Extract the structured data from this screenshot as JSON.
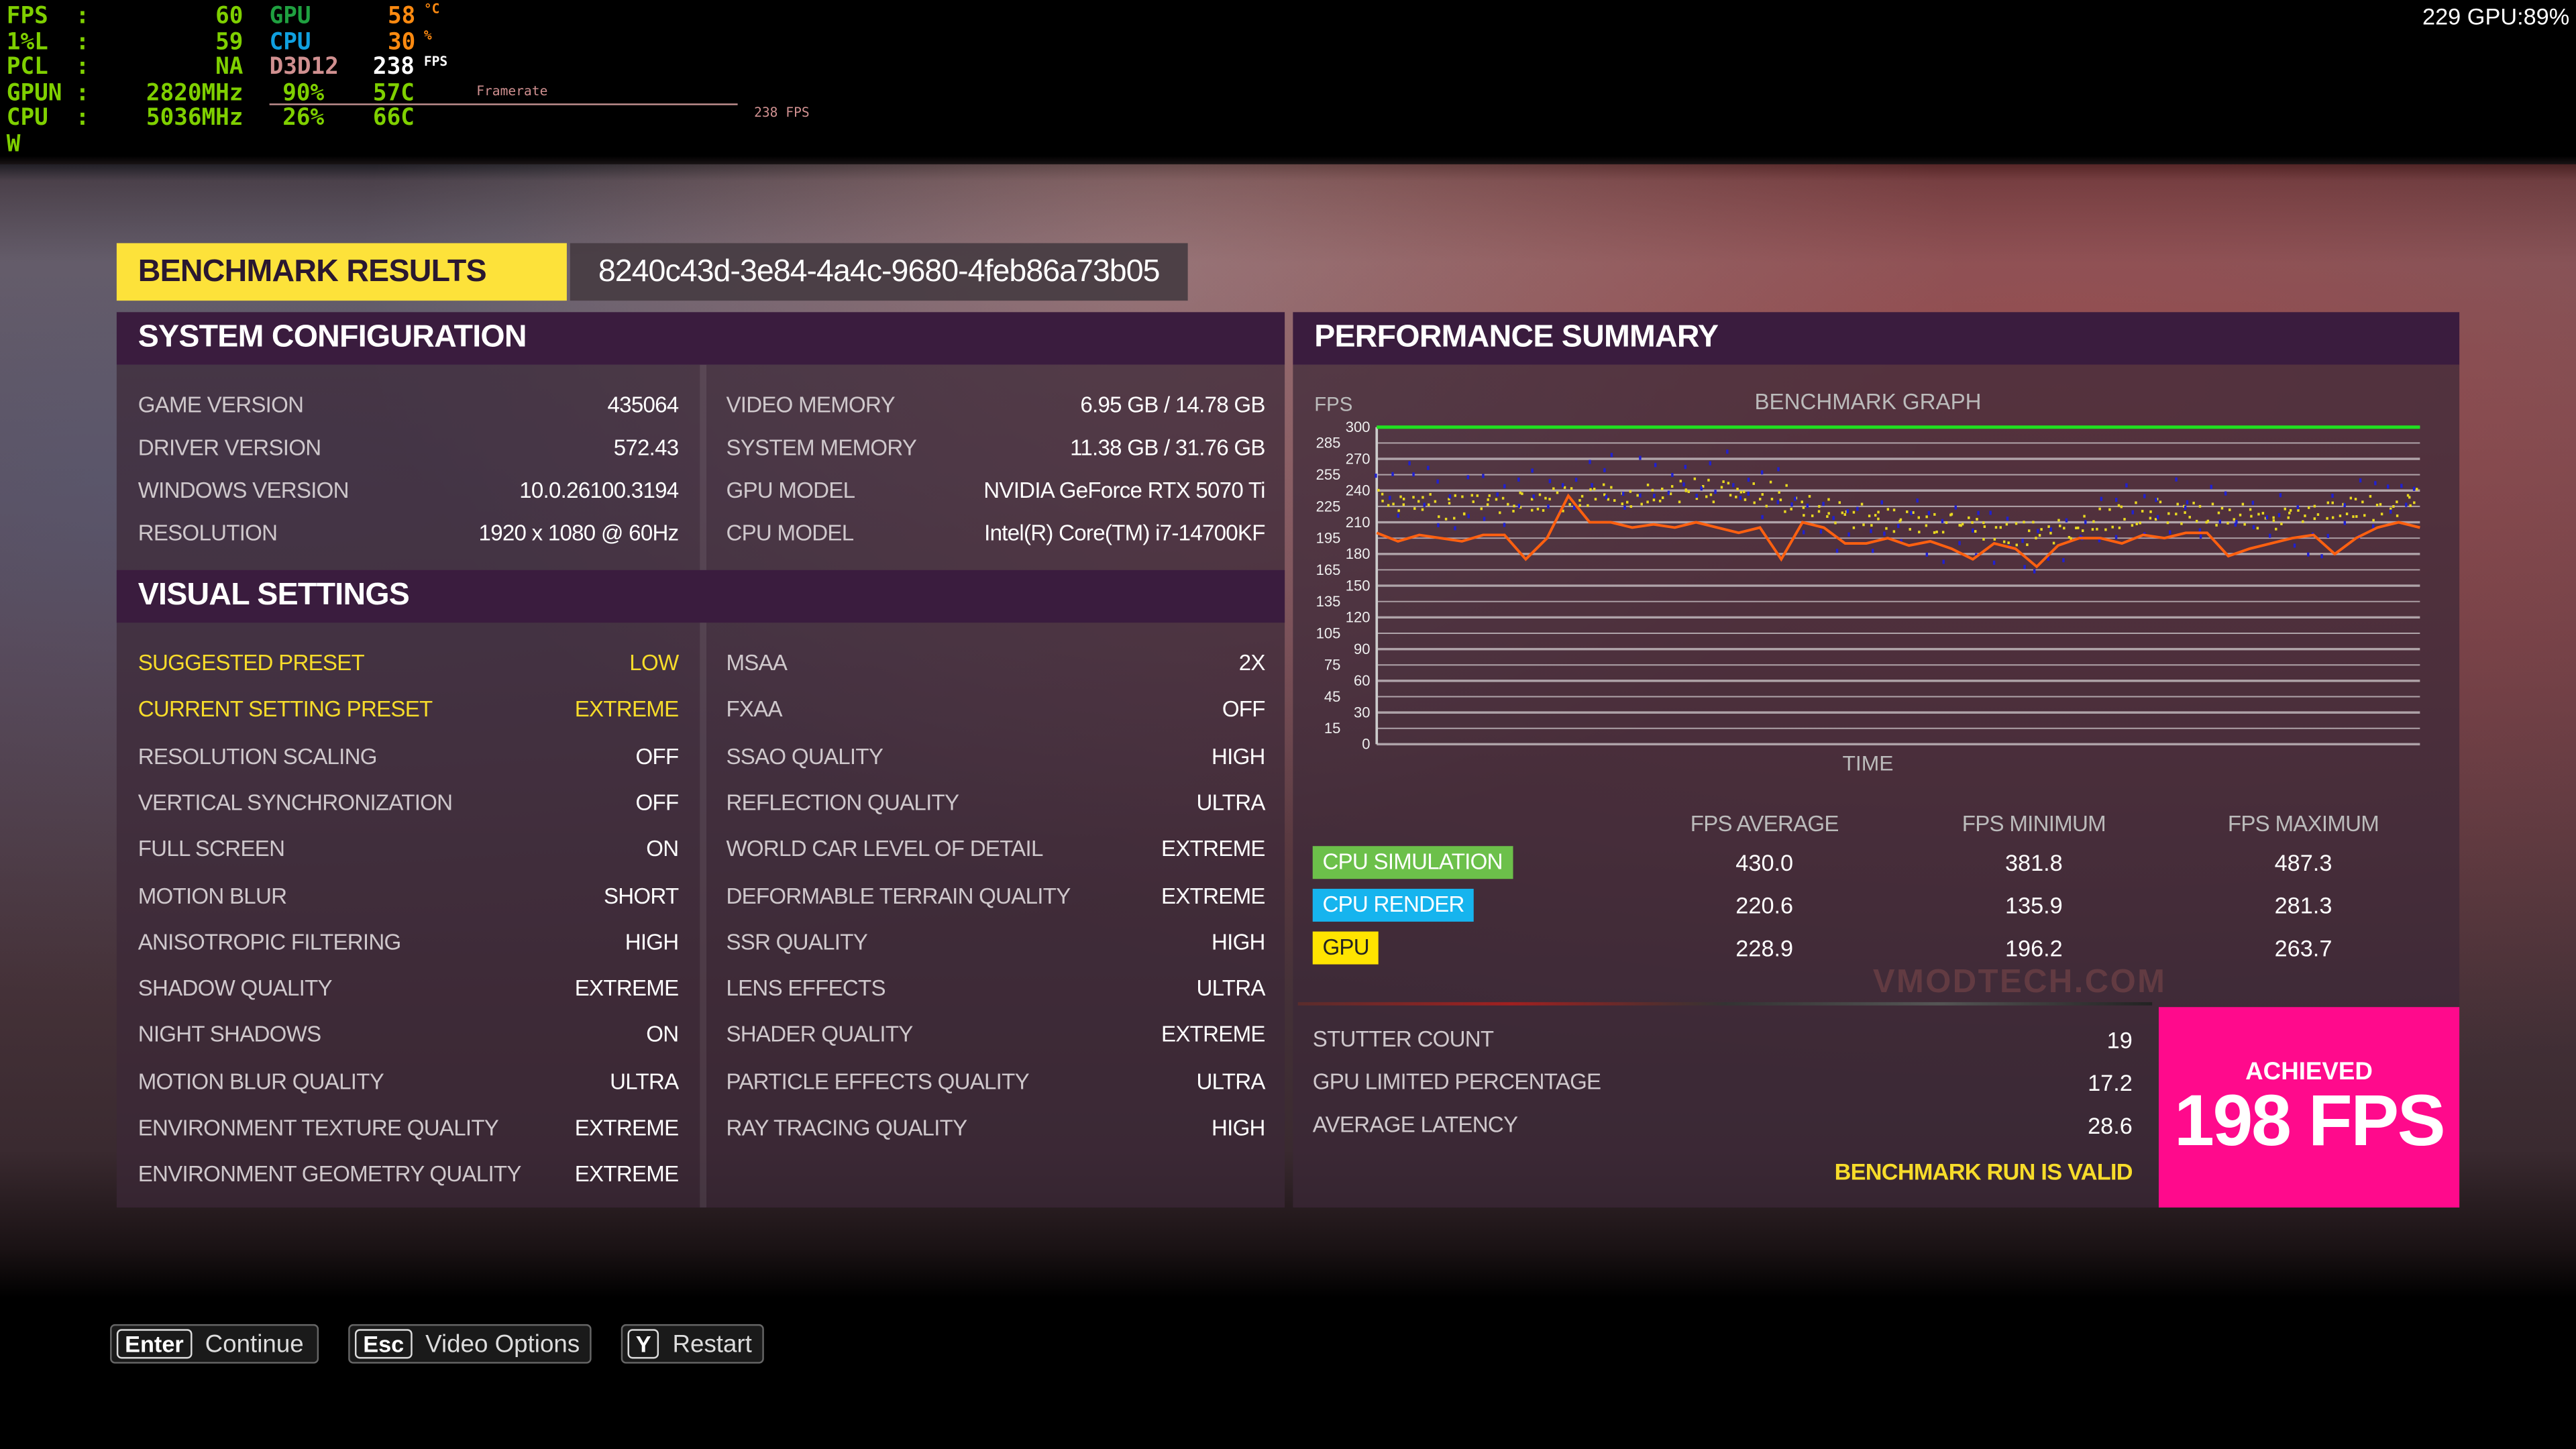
{
  "overlay": {
    "left": [
      {
        "label": "FPS",
        "sep": ":",
        "value": "60"
      },
      {
        "label": "1%L",
        "sep": ":",
        "value": "59"
      },
      {
        "label": "PCL",
        "sep": ":",
        "value": "NA"
      },
      {
        "label": "GPUN",
        "sep": ":",
        "value": "2820MHz"
      },
      {
        "label": "CPU",
        "sep": ":",
        "value": "5036MHz"
      },
      {
        "label": "W",
        "sep": "",
        "value": ""
      }
    ],
    "gpu_label": "GPU",
    "gpu_temp": "58",
    "temp_unit": "°C",
    "cpu_label": "CPU",
    "cpu_usage": "30",
    "pct_unit": "%",
    "api": "D3D12",
    "api_fps": "238",
    "fps_unit": "FPS",
    "framerate_label": "Framerate",
    "gpu_load": "90%",
    "gpu_temp2": "57C",
    "cpu_load": "26%",
    "cpu_temp": "66C",
    "graph_fps": "238 FPS",
    "top_right": "229 GPU:89%"
  },
  "header": {
    "title": "BENCHMARK RESULTS",
    "run_id": "8240c43d-3e84-4a4c-9680-4feb86a73b05"
  },
  "system_config": {
    "title": "SYSTEM CONFIGURATION",
    "left": [
      {
        "label": "GAME VERSION",
        "value": "435064"
      },
      {
        "label": "DRIVER VERSION",
        "value": "572.43"
      },
      {
        "label": "WINDOWS VERSION",
        "value": "10.0.26100.3194"
      },
      {
        "label": "RESOLUTION",
        "value": "1920 x 1080 @ 60Hz"
      }
    ],
    "right": [
      {
        "label": "VIDEO MEMORY",
        "value": "6.95 GB / 14.78 GB"
      },
      {
        "label": "SYSTEM MEMORY",
        "value": "11.38 GB / 31.76 GB"
      },
      {
        "label": "GPU MODEL",
        "value": "NVIDIA GeForce RTX 5070 Ti"
      },
      {
        "label": "CPU MODEL",
        "value": "Intel(R) Core(TM) i7-14700KF"
      }
    ]
  },
  "visual_settings": {
    "title": "VISUAL SETTINGS",
    "left": [
      {
        "label": "SUGGESTED PRESET",
        "value": "LOW",
        "highlight": true
      },
      {
        "label": "CURRENT SETTING PRESET",
        "value": "EXTREME",
        "highlight": true
      },
      {
        "label": "RESOLUTION SCALING",
        "value": "OFF"
      },
      {
        "label": "VERTICAL SYNCHRONIZATION",
        "value": "OFF"
      },
      {
        "label": "FULL SCREEN",
        "value": "ON"
      },
      {
        "label": "MOTION BLUR",
        "value": "SHORT"
      },
      {
        "label": "ANISOTROPIC FILTERING",
        "value": "HIGH"
      },
      {
        "label": "SHADOW QUALITY",
        "value": "EXTREME"
      },
      {
        "label": "NIGHT SHADOWS",
        "value": "ON"
      },
      {
        "label": "MOTION BLUR QUALITY",
        "value": "ULTRA"
      },
      {
        "label": "ENVIRONMENT TEXTURE QUALITY",
        "value": "EXTREME"
      },
      {
        "label": "ENVIRONMENT GEOMETRY QUALITY",
        "value": "EXTREME"
      }
    ],
    "right": [
      {
        "label": "MSAA",
        "value": "2X"
      },
      {
        "label": "FXAA",
        "value": "OFF"
      },
      {
        "label": "SSAO QUALITY",
        "value": "HIGH"
      },
      {
        "label": "REFLECTION QUALITY",
        "value": "ULTRA"
      },
      {
        "label": "WORLD CAR LEVEL OF DETAIL",
        "value": "EXTREME"
      },
      {
        "label": "DEFORMABLE TERRAIN QUALITY",
        "value": "EXTREME"
      },
      {
        "label": "SSR QUALITY",
        "value": "HIGH"
      },
      {
        "label": "LENS EFFECTS",
        "value": "ULTRA"
      },
      {
        "label": "SHADER QUALITY",
        "value": "EXTREME"
      },
      {
        "label": "PARTICLE EFFECTS QUALITY",
        "value": "ULTRA"
      },
      {
        "label": "RAY TRACING QUALITY",
        "value": "HIGH"
      }
    ]
  },
  "performance": {
    "title": "PERFORMANCE SUMMARY",
    "columns": [
      "FPS AVERAGE",
      "FPS MINIMUM",
      "FPS MAXIMUM"
    ],
    "rows": [
      {
        "label": "CPU SIMULATION",
        "color": "#6cc04a",
        "text_color": "#ffffff",
        "values": [
          "430.0",
          "381.8",
          "487.3"
        ]
      },
      {
        "label": "CPU RENDER",
        "color": "#16b4ee",
        "text_color": "#ffffff",
        "values": [
          "220.6",
          "135.9",
          "281.3"
        ]
      },
      {
        "label": "GPU",
        "color": "#ffe400",
        "text_color": "#222222",
        "values": [
          "228.9",
          "196.2",
          "263.7"
        ]
      }
    ],
    "stats": [
      {
        "label": "STUTTER COUNT",
        "value": "19"
      },
      {
        "label": "GPU LIMITED PERCENTAGE",
        "value": "17.2"
      },
      {
        "label": "AVERAGE LATENCY",
        "value": "28.6"
      }
    ],
    "valid_text": "BENCHMARK RUN IS VALID",
    "achieved_label": "ACHIEVED",
    "achieved_value": "198 FPS",
    "achieved_color": "#ff0a8c",
    "watermark": "VMODTECH.COM"
  },
  "chart_data": {
    "type": "line",
    "title": "BENCHMARK GRAPH",
    "xlabel": "TIME",
    "ylabel": "FPS",
    "ylim": [
      0,
      300
    ],
    "yticks": [
      0,
      15,
      30,
      45,
      60,
      75,
      90,
      105,
      120,
      135,
      150,
      165,
      180,
      195,
      210,
      225,
      240,
      255,
      270,
      285,
      300
    ],
    "grid": true,
    "series": [
      {
        "color": "#20e020",
        "style": "line",
        "values": [
          300,
          300,
          300,
          300,
          300,
          300,
          300,
          300,
          300,
          300
        ]
      },
      {
        "color": "#e8d820",
        "style": "scatter",
        "values": [
          235,
          228,
          225,
          228,
          230,
          232,
          238,
          236,
          240,
          242,
          240,
          238,
          225,
          218,
          215,
          212,
          210,
          205,
          200,
          202,
          210,
          220,
          222,
          220,
          218,
          215,
          218,
          222,
          225,
          232
        ]
      },
      {
        "color": "#2020d0",
        "style": "scatter",
        "values": [
          240,
          250,
          230,
          245,
          235,
          240,
          255,
          245,
          250,
          248,
          252,
          240,
          215,
          205,
          210,
          205,
          200,
          195,
          190,
          200,
          215,
          225,
          230,
          220,
          215,
          210,
          200,
          225,
          230,
          240
        ]
      },
      {
        "color": "#ff6010",
        "style": "line",
        "values": [
          200,
          192,
          198,
          195,
          192,
          198,
          198,
          175,
          195,
          235,
          210,
          210,
          205,
          208,
          205,
          210,
          205,
          200,
          205,
          175,
          210,
          205,
          190,
          190,
          195,
          188,
          192,
          185,
          175,
          190,
          185,
          168,
          188,
          195,
          195,
          190,
          198,
          195,
          200,
          200,
          178,
          185,
          190,
          195,
          198,
          180,
          195,
          205,
          210,
          205
        ]
      }
    ]
  },
  "footer": {
    "buttons": [
      {
        "key": "Enter",
        "label": "Continue"
      },
      {
        "key": "Esc",
        "label": "Video Options"
      },
      {
        "key": "Y",
        "label": "Restart"
      }
    ]
  }
}
